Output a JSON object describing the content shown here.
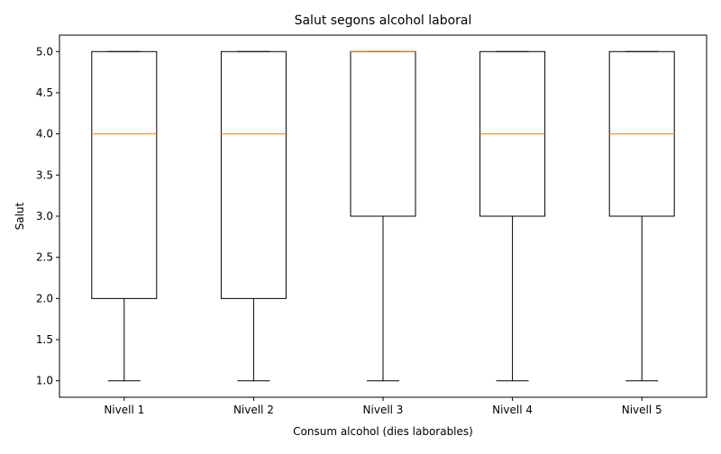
{
  "chart_data": {
    "type": "boxplot",
    "title": "Salut segons alcohol laboral",
    "xlabel": "Consum alcohol (dies laborables)",
    "ylabel": "Salut",
    "ylim": [
      0.8,
      5.2
    ],
    "yticks": [
      "1.0",
      "1.5",
      "2.0",
      "2.5",
      "3.0",
      "3.5",
      "4.0",
      "4.5",
      "5.0"
    ],
    "grid": false,
    "categories": [
      "Nivell 1",
      "Nivell 2",
      "Nivell 3",
      "Nivell 4",
      "Nivell 5"
    ],
    "boxes": [
      {
        "category": "Nivell 1",
        "whisker_low": 1,
        "q1": 2,
        "median": 4,
        "q3": 5,
        "whisker_high": 5
      },
      {
        "category": "Nivell 2",
        "whisker_low": 1,
        "q1": 2,
        "median": 4,
        "q3": 5,
        "whisker_high": 5
      },
      {
        "category": "Nivell 3",
        "whisker_low": 1,
        "q1": 3,
        "median": 5,
        "q3": 5,
        "whisker_high": 5
      },
      {
        "category": "Nivell 4",
        "whisker_low": 1,
        "q1": 3,
        "median": 4,
        "q3": 5,
        "whisker_high": 5
      },
      {
        "category": "Nivell 5",
        "whisker_low": 1,
        "q1": 3,
        "median": 4,
        "q3": 5,
        "whisker_high": 5
      }
    ],
    "colors": {
      "box": "#000000",
      "median": "#ff7f0e",
      "whisker": "#000000"
    }
  }
}
